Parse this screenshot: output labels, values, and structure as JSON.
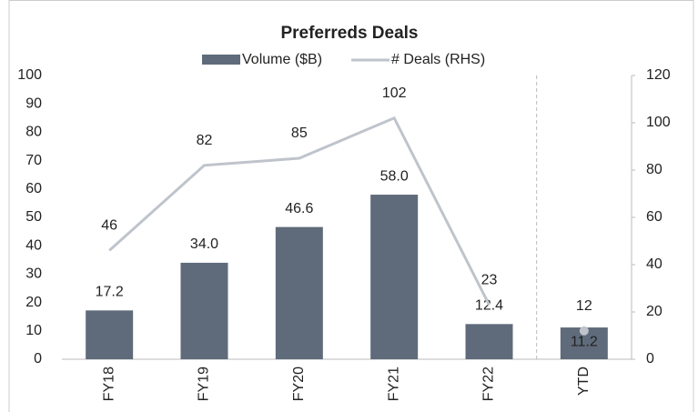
{
  "chart_data": {
    "type": "bar_line",
    "title": "Preferreds Deals",
    "categories": [
      "FY18",
      "FY19",
      "FY20",
      "FY21",
      "FY22",
      "YTD"
    ],
    "series": [
      {
        "name": "Volume ($B)",
        "color": "#5f6b7a",
        "type": "bar",
        "values": [
          17.2,
          34,
          46.6,
          58,
          12.4,
          11.2
        ],
        "value_labels": [
          "17.2",
          "34.0",
          "46.6",
          "58.0",
          "12.4",
          "11.2"
        ]
      },
      {
        "name": "# Deals (RHS)",
        "color": "#bfc4cc",
        "type": "line",
        "axis": "y2",
        "values": [
          46,
          82,
          85,
          102,
          23,
          12
        ]
      }
    ],
    "ylim": [
      0,
      100
    ],
    "yticks": [
      0,
      10,
      20,
      30,
      40,
      50,
      60,
      70,
      80,
      90,
      100
    ],
    "y2lim": [
      0,
      120
    ],
    "y2ticks": [
      0,
      20,
      40,
      60,
      80,
      100,
      120
    ],
    "divider": true,
    "legend": "top"
  }
}
